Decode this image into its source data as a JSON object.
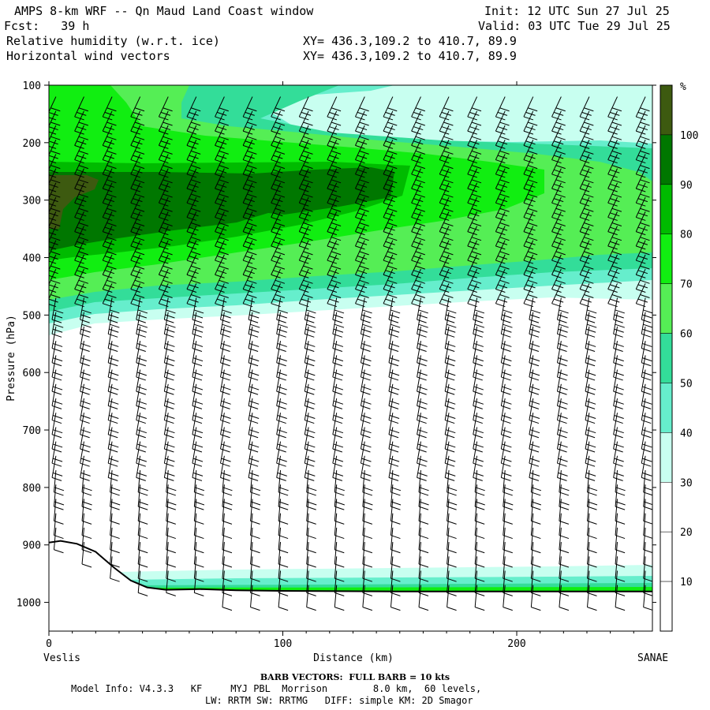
{
  "header": {
    "title": "AMPS 8-km WRF -- Qn Maud Land Coast window",
    "init": "Init: 12 UTC Sun 27 Jul 25",
    "fcst": "Fcst:   39 h",
    "valid": "Valid: 03 UTC Tue 29 Jul 25",
    "field1": "Relative humidity (w.r.t. ice)",
    "field2": "Horizontal wind vectors",
    "xy1": "XY= 436.3,109.2 to 410.7, 89.9",
    "xy2": "XY= 436.3,109.2 to 410.7, 89.9"
  },
  "chart_data": {
    "type": "heatmap",
    "subtype": "vertical cross-section with wind barbs",
    "xlabel": "Distance (km)",
    "ylabel": "Pressure (hPa)",
    "x_endpoints": [
      "Veslis",
      "SANAE"
    ],
    "xlim": [
      0,
      258
    ],
    "ylim": [
      1050,
      100
    ],
    "x_ticks": [
      0,
      100,
      200
    ],
    "y_ticks": [
      100,
      200,
      300,
      400,
      500,
      600,
      700,
      800,
      900,
      1000
    ],
    "colorbar": {
      "unit": "%",
      "levels": [
        10,
        20,
        30,
        40,
        50,
        60,
        70,
        80,
        90,
        100
      ],
      "colors": [
        "#ffffff",
        "#ffffff",
        "#ffffff",
        "#c8fff0",
        "#66eecc",
        "#33dd99",
        "#55ee55",
        "#11ee11",
        "#00bb00",
        "#007700",
        "#3d5a10"
      ]
    },
    "terrain_pressure": [
      {
        "x": 0,
        "p": 896
      },
      {
        "x": 5,
        "p": 893
      },
      {
        "x": 12,
        "p": 898
      },
      {
        "x": 20,
        "p": 912
      },
      {
        "x": 28,
        "p": 940
      },
      {
        "x": 35,
        "p": 962
      },
      {
        "x": 42,
        "p": 974
      },
      {
        "x": 50,
        "p": 978
      },
      {
        "x": 65,
        "p": 977
      },
      {
        "x": 80,
        "p": 979
      },
      {
        "x": 100,
        "p": 980
      },
      {
        "x": 150,
        "p": 981
      },
      {
        "x": 200,
        "p": 981
      },
      {
        "x": 258,
        "p": 981
      }
    ],
    "barb_note": "BARB VECTORS:  FULL BARB = 10 kts"
  },
  "footer": {
    "barb": "BARB VECTORS:  FULL BARB = 10 kts",
    "model1": "Model Info: V4.3.3   KF     MYJ PBL  Morrison        8.0 km,  60 levels,",
    "model2": "LW: RRTM SW: RRTMG   DIFF: simple KM: 2D Smagor"
  }
}
